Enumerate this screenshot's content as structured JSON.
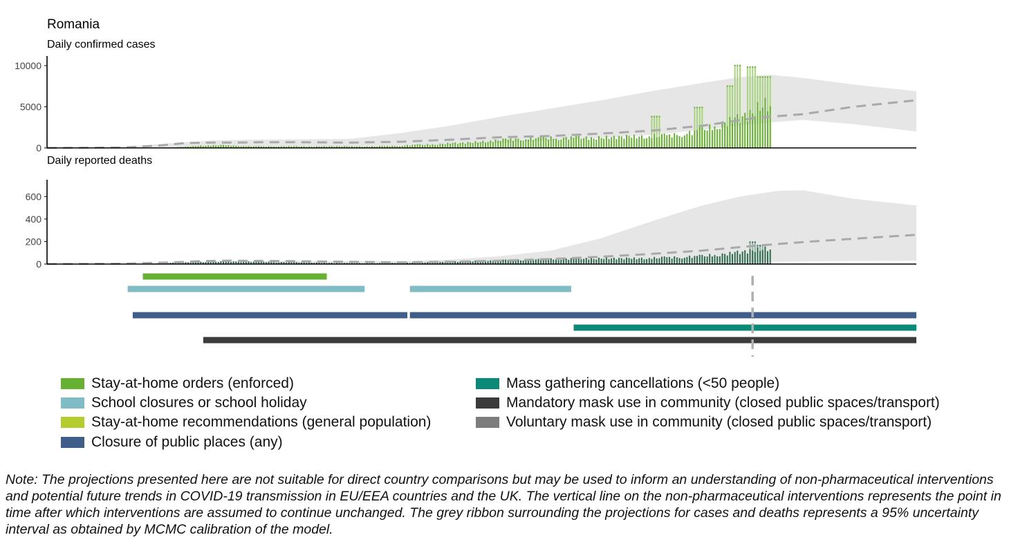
{
  "chart_data": {
    "type": "bar",
    "country": "Romania",
    "x_days": 345,
    "observed_days": 287,
    "intervention_cutoff_day": 280,
    "cases": {
      "title": "Daily confirmed cases",
      "ylim": [
        0,
        10500
      ],
      "yticks": [
        0,
        5000,
        10000
      ],
      "observed_anchors": [
        [
          0,
          0
        ],
        [
          20,
          5
        ],
        [
          35,
          20
        ],
        [
          50,
          60
        ],
        [
          55,
          150
        ],
        [
          60,
          250
        ],
        [
          65,
          300
        ],
        [
          70,
          320
        ],
        [
          75,
          250
        ],
        [
          80,
          200
        ],
        [
          85,
          180
        ],
        [
          90,
          180
        ],
        [
          95,
          200
        ],
        [
          100,
          180
        ],
        [
          105,
          170
        ],
        [
          110,
          200
        ],
        [
          115,
          200
        ],
        [
          120,
          200
        ],
        [
          125,
          180
        ],
        [
          130,
          200
        ],
        [
          135,
          230
        ],
        [
          140,
          280
        ],
        [
          145,
          350
        ],
        [
          150,
          400
        ],
        [
          155,
          450
        ],
        [
          160,
          550
        ],
        [
          165,
          600
        ],
        [
          170,
          700
        ],
        [
          175,
          800
        ],
        [
          180,
          950
        ],
        [
          185,
          1050
        ],
        [
          190,
          1100
        ],
        [
          195,
          1150
        ],
        [
          200,
          1200
        ],
        [
          205,
          1200
        ],
        [
          210,
          1250
        ],
        [
          215,
          1200
        ],
        [
          220,
          1250
        ],
        [
          225,
          1300
        ],
        [
          230,
          1350
        ],
        [
          235,
          1350
        ],
        [
          240,
          1400
        ],
        [
          245,
          1450
        ],
        [
          250,
          1600
        ],
        [
          255,
          1800
        ],
        [
          260,
          2200
        ],
        [
          265,
          2600
        ],
        [
          270,
          3100
        ],
        [
          275,
          3600
        ],
        [
          280,
          4200
        ],
        [
          283,
          5000
        ],
        [
          287,
          5500
        ]
      ],
      "observed_highlights": [
        {
          "start": 240,
          "end": 243,
          "value": 3900
        },
        {
          "start": 257,
          "end": 260,
          "value": 5000
        },
        {
          "start": 270,
          "end": 272,
          "value": 7600
        },
        {
          "start": 273,
          "end": 275,
          "value": 10100
        },
        {
          "start": 278,
          "end": 281,
          "value": 9900
        },
        {
          "start": 282,
          "end": 287,
          "value": 8700
        }
      ],
      "projection_median": [
        [
          0,
          0
        ],
        [
          30,
          50
        ],
        [
          45,
          300
        ],
        [
          55,
          600
        ],
        [
          65,
          650
        ],
        [
          75,
          650
        ],
        [
          85,
          700
        ],
        [
          100,
          700
        ],
        [
          120,
          650
        ],
        [
          140,
          750
        ],
        [
          160,
          1000
        ],
        [
          180,
          1300
        ],
        [
          200,
          1450
        ],
        [
          220,
          1750
        ],
        [
          240,
          2100
        ],
        [
          260,
          2700
        ],
        [
          280,
          3600
        ],
        [
          287,
          3800
        ],
        [
          300,
          4100
        ],
        [
          320,
          5000
        ],
        [
          345,
          5800
        ]
      ],
      "ribbon_upper": [
        [
          0,
          0
        ],
        [
          30,
          100
        ],
        [
          50,
          600
        ],
        [
          65,
          900
        ],
        [
          80,
          1000
        ],
        [
          100,
          1050
        ],
        [
          120,
          1100
        ],
        [
          140,
          1800
        ],
        [
          160,
          2700
        ],
        [
          180,
          3800
        ],
        [
          200,
          4800
        ],
        [
          220,
          5800
        ],
        [
          240,
          6900
        ],
        [
          260,
          7900
        ],
        [
          275,
          8600
        ],
        [
          287,
          8900
        ],
        [
          300,
          8500
        ],
        [
          320,
          7700
        ],
        [
          345,
          6900
        ]
      ],
      "ribbon_lower": [
        [
          0,
          0
        ],
        [
          30,
          0
        ],
        [
          60,
          100
        ],
        [
          120,
          150
        ],
        [
          160,
          400
        ],
        [
          180,
          600
        ],
        [
          200,
          900
        ],
        [
          220,
          1200
        ],
        [
          240,
          1600
        ],
        [
          260,
          2200
        ],
        [
          280,
          2900
        ],
        [
          287,
          3100
        ],
        [
          300,
          3400
        ],
        [
          320,
          2900
        ],
        [
          345,
          2000
        ]
      ]
    },
    "deaths": {
      "title": "Daily reported deaths",
      "ylim": [
        0,
        700
      ],
      "yticks": [
        0,
        200,
        400,
        600
      ],
      "observed_anchors": [
        [
          0,
          0
        ],
        [
          20,
          0
        ],
        [
          35,
          2
        ],
        [
          45,
          8
        ],
        [
          55,
          15
        ],
        [
          65,
          20
        ],
        [
          75,
          22
        ],
        [
          85,
          20
        ],
        [
          100,
          15
        ],
        [
          115,
          10
        ],
        [
          130,
          8
        ],
        [
          145,
          12
        ],
        [
          160,
          20
        ],
        [
          175,
          30
        ],
        [
          190,
          40
        ],
        [
          205,
          45
        ],
        [
          220,
          50
        ],
        [
          235,
          50
        ],
        [
          250,
          60
        ],
        [
          260,
          70
        ],
        [
          270,
          90
        ],
        [
          280,
          120
        ],
        [
          287,
          140
        ]
      ],
      "observed_highlights": [
        {
          "start": 279,
          "end": 281,
          "value": 200
        },
        {
          "start": 282,
          "end": 284,
          "value": 170
        }
      ],
      "projection_median": [
        [
          0,
          0
        ],
        [
          30,
          3
        ],
        [
          50,
          15
        ],
        [
          60,
          25
        ],
        [
          70,
          30
        ],
        [
          85,
          28
        ],
        [
          100,
          25
        ],
        [
          120,
          20
        ],
        [
          140,
          15
        ],
        [
          160,
          20
        ],
        [
          180,
          30
        ],
        [
          200,
          45
        ],
        [
          220,
          65
        ],
        [
          240,
          90
        ],
        [
          260,
          120
        ],
        [
          280,
          160
        ],
        [
          300,
          195
        ],
        [
          320,
          225
        ],
        [
          345,
          260
        ]
      ],
      "ribbon_upper": [
        [
          0,
          0
        ],
        [
          40,
          5
        ],
        [
          60,
          20
        ],
        [
          100,
          25
        ],
        [
          140,
          25
        ],
        [
          160,
          40
        ],
        [
          180,
          70
        ],
        [
          200,
          120
        ],
        [
          220,
          230
        ],
        [
          240,
          380
        ],
        [
          260,
          520
        ],
        [
          275,
          600
        ],
        [
          290,
          650
        ],
        [
          300,
          655
        ],
        [
          320,
          580
        ],
        [
          345,
          520
        ]
      ],
      "ribbon_lower": [
        [
          0,
          0
        ],
        [
          60,
          3
        ],
        [
          140,
          3
        ],
        [
          200,
          10
        ],
        [
          240,
          15
        ],
        [
          280,
          20
        ],
        [
          300,
          25
        ],
        [
          345,
          30
        ]
      ]
    },
    "interventions": [
      {
        "name": "Stay-at-home orders (enforced)",
        "color": "#66b032",
        "segments": [
          [
            38,
            111
          ]
        ]
      },
      {
        "name": "School closures or school holiday",
        "color": "#7fbcc5",
        "segments": [
          [
            32,
            126
          ],
          [
            144,
            208
          ]
        ]
      },
      {
        "name": "Closure of public places (any)",
        "color": "#3f5f8a",
        "segments": [
          [
            34,
            143
          ],
          [
            144,
            345
          ]
        ]
      },
      {
        "name": "Mass gathering cancellations (<50 people)",
        "color": "#0c8a78",
        "segments": [
          [
            209,
            345
          ]
        ]
      },
      {
        "name": "Mandatory mask use in community (closed public spaces/transport)",
        "color": "#3b3b3b",
        "segments": [
          [
            62,
            345
          ]
        ]
      }
    ]
  },
  "legend": {
    "items": [
      {
        "label": "Stay-at-home orders (enforced)",
        "color": "#66b032"
      },
      {
        "label": "School closures or school holiday",
        "color": "#7fbcc5"
      },
      {
        "label": "Stay-at-home recommendations (general population)",
        "color": "#b5cc2f"
      },
      {
        "label": "Closure of public places (any)",
        "color": "#3f5f8a"
      },
      {
        "label": "Mass gathering cancellations (<50 people)",
        "color": "#0c8a78"
      },
      {
        "label": "Mandatory mask use in community (closed public spaces/transport)",
        "color": "#3b3b3b"
      },
      {
        "label": "Voluntary mask use in community (closed public spaces/transport)",
        "color": "#7d7d7d"
      }
    ]
  },
  "note": "Note: The projections presented here are not suitable for direct country comparisons but may be used to inform an understanding of non-pharmaceutical interventions and potential future trends in COVID-19 transmission in EU/EEA countries and the UK. The vertical line on the non-pharmaceutical interventions represents the point in time after which interventions are assumed to continue unchanged. The grey ribbon surrounding the projections for cases and deaths represents a 95% uncertainty interval as obtained by MCMC calibration of the model.",
  "colors": {
    "cases_bar": "#66b032",
    "cases_bar_light": "#a9d47e",
    "deaths_bar": "#2f6b4f",
    "deaths_bar_light": "#8fb7a0",
    "ribbon": "#e6e6e6",
    "median": "#a9a9a9"
  }
}
